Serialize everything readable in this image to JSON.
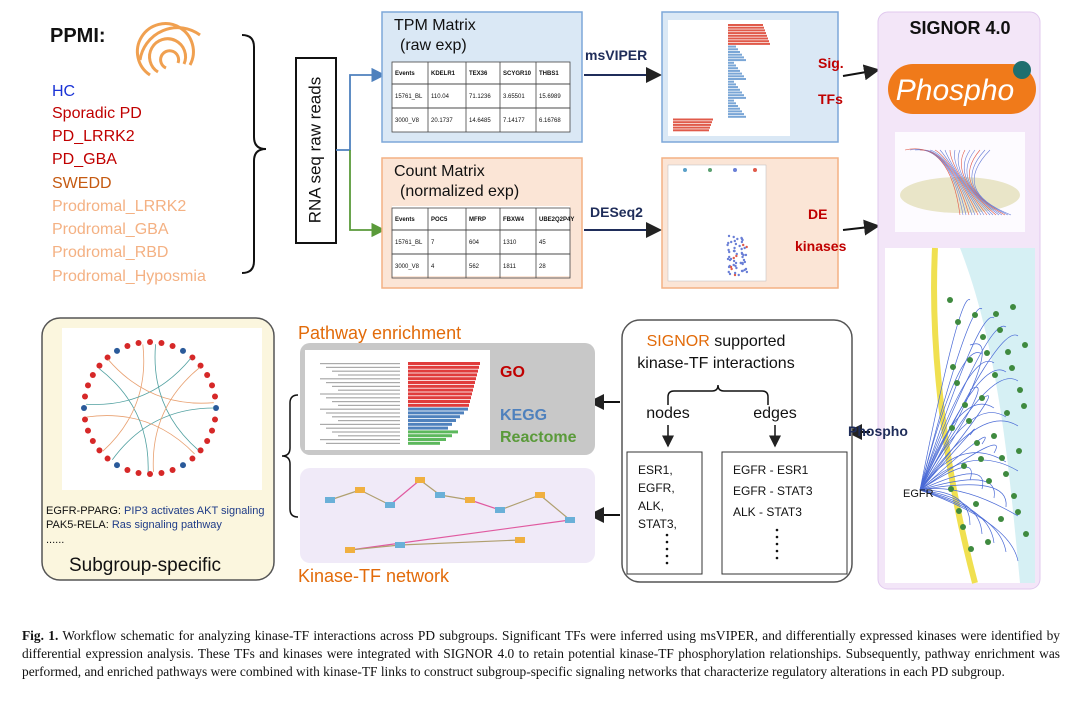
{
  "ppmi": {
    "title": "PPMI:",
    "groups": [
      "HC",
      "Sporadic PD",
      "PD_LRRK2",
      "PD_GBA",
      "SWEDD",
      "Prodromal_LRRK2",
      "Prodromal_GBA",
      "Prodromal_RBD",
      "Prodromal_Hyposmia"
    ]
  },
  "reads_label": "RNA seq raw reads",
  "tpm": {
    "title": "TPM Matrix",
    "subtitle": "(raw exp)",
    "header": [
      "Events",
      "KDELR1",
      "TEX36",
      "SCYGR10",
      "THBS1"
    ],
    "rows": [
      [
        "15761_BL",
        "110.04",
        "71.1236",
        "3.65501",
        "15.6989"
      ],
      [
        "3000_V8",
        "20.1737",
        "14.6485",
        "7.14177",
        "6.16768"
      ]
    ]
  },
  "count": {
    "title": "Count Matrix",
    "subtitle": "(normalized exp)",
    "header": [
      "Events",
      "POC5",
      "MFRP",
      "FBXW4",
      "UBE2Q2P4Y"
    ],
    "rows": [
      [
        "15761_BL",
        "7",
        "604",
        "1310",
        "45"
      ],
      [
        "3000_V8",
        "4",
        "562",
        "1811",
        "28"
      ]
    ]
  },
  "tools": {
    "msviper": "msVIPER",
    "deseq2": "DESeq2"
  },
  "outputs": {
    "tfs": [
      "Sig.",
      "TFs"
    ],
    "kinases": [
      "DE",
      "kinases"
    ]
  },
  "signor": {
    "title": "SIGNOR 4.0",
    "logo": "Phospho",
    "arrow_label": "Phospho",
    "node_label": "EGFR"
  },
  "interactions": {
    "title_highlight": "SIGNOR",
    "title_rest": "supported",
    "title_line2": "kinase-TF interactions",
    "nodes_label": "nodes",
    "edges_label": "edges",
    "nodes": [
      "ESR1,",
      "EGFR,",
      "ALK,",
      "STAT3,"
    ],
    "edges": [
      "EGFR - ESR1",
      "EGFR - STAT3",
      "ALK - STAT3"
    ]
  },
  "enrichment": {
    "title": "Pathway enrichment",
    "labels": [
      "GO",
      "KEGG",
      "Reactome"
    ]
  },
  "network": {
    "title": "Kinase-TF network"
  },
  "subgroup": {
    "examples": [
      {
        "pair": "EGFR-PPARG:",
        "pathway": "PIP3 activates AKT signaling"
      },
      {
        "pair": "PAK5-RELA:",
        "pathway": "Ras signaling pathway"
      }
    ],
    "ellipsis": "......",
    "title": "Subgroup-specific"
  },
  "caption": {
    "label": "Fig. 1.",
    "text": "Workflow schematic for analyzing kinase-TF interactions across PD subgroups. Significant TFs were inferred using msVIPER, and differentially expressed kinases were identified by differential expression analysis. These TFs and kinases were integrated with SIGNOR 4.0 to retain potential kinase-TF phosphorylation relationships. Subsequently, pathway enrichment was performed, and enriched pathways were combined with kinase-TF links to construct subgroup-specific signaling networks that characterize regulatory alterations in each PD subgroup."
  }
}
